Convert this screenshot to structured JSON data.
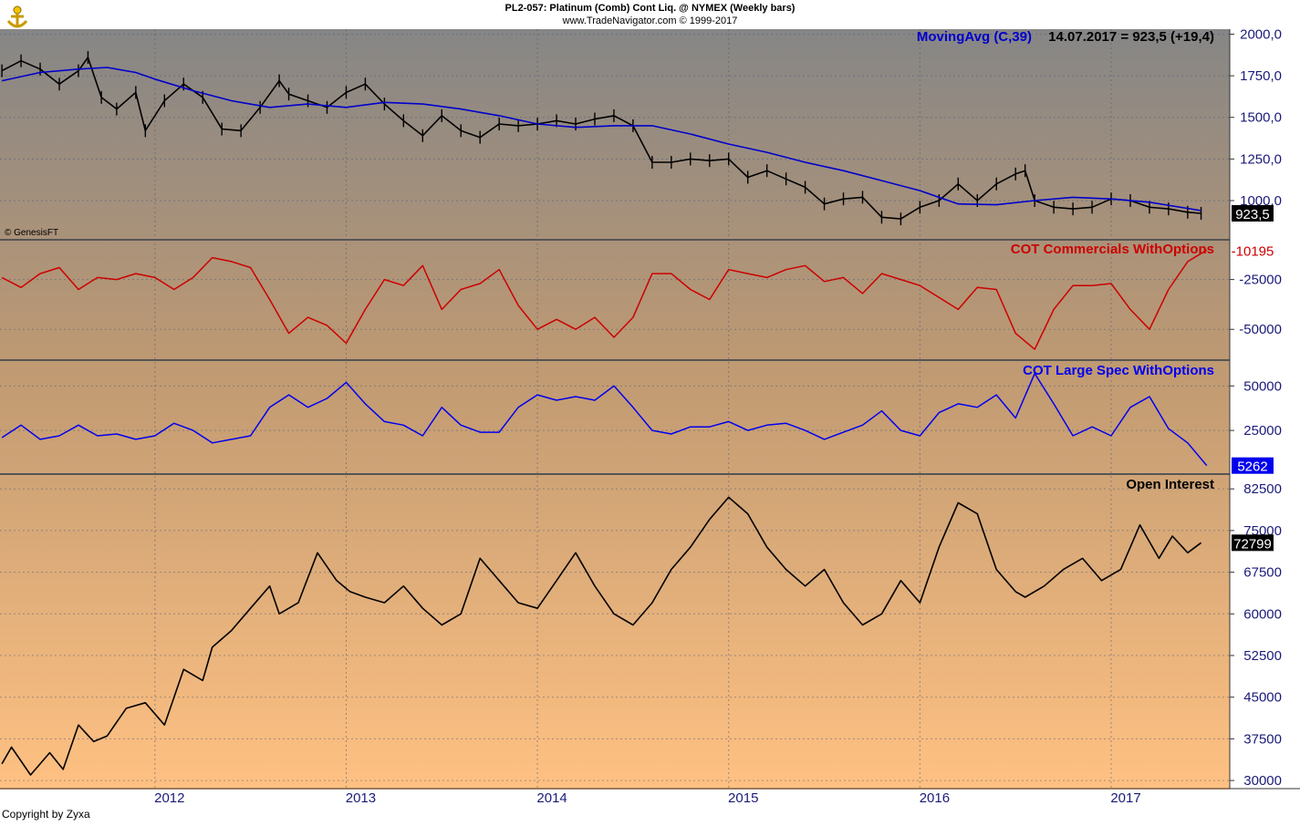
{
  "header": {
    "title": "PL2-057:  Platinum (Comb) Cont Liq. @ NYMEX  (Weekly bars)",
    "subtitle": "www.TradeNavigator.com © 1999-2017"
  },
  "footer": {
    "copyright": "Copyright by Zyxa",
    "source": "© GenesisFT"
  },
  "colors": {
    "price": "#000000",
    "moving_avg": "#0000cc",
    "commercials": "#cc0000",
    "large_spec": "#0000ee",
    "open_interest": "#000000",
    "bg_top": "#858585",
    "bg_bottom": "#ffc080"
  },
  "chart_data": [
    {
      "type": "line",
      "panel": "price",
      "legend": "MovingAvg (C,39)",
      "readout": "14.07.2017 = 923,5 (+19,4)",
      "last_value_label": "923,5",
      "y_ticks": [
        "2000,0",
        "1750,0",
        "1500,0",
        "1250,0",
        "1000,0"
      ],
      "y_tick_values": [
        2000,
        1750,
        1500,
        1250,
        1000
      ],
      "ylim": [
        770,
        2030
      ],
      "x_ticks": [
        "2012",
        "2013",
        "2014",
        "2015",
        "2016",
        "2017"
      ],
      "x_tick_values": [
        2012,
        2013,
        2014,
        2015,
        2016,
        2017
      ],
      "xlim": [
        2011.19,
        2017.62
      ],
      "series": [
        {
          "role": "price",
          "x": [
            2011.2,
            2011.3,
            2011.4,
            2011.5,
            2011.6,
            2011.65,
            2011.72,
            2011.8,
            2011.9,
            2011.95,
            2012.05,
            2012.15,
            2012.25,
            2012.35,
            2012.45,
            2012.55,
            2012.65,
            2012.7,
            2012.8,
            2012.9,
            2013.0,
            2013.1,
            2013.2,
            2013.3,
            2013.4,
            2013.5,
            2013.6,
            2013.7,
            2013.8,
            2013.9,
            2014.0,
            2014.1,
            2014.2,
            2014.3,
            2014.4,
            2014.5,
            2014.6,
            2014.7,
            2014.8,
            2014.9,
            2015.0,
            2015.1,
            2015.2,
            2015.3,
            2015.4,
            2015.5,
            2015.6,
            2015.7,
            2015.8,
            2015.9,
            2016.0,
            2016.1,
            2016.2,
            2016.3,
            2016.4,
            2016.5,
            2016.55,
            2016.6,
            2016.7,
            2016.8,
            2016.9,
            2017.0,
            2017.1,
            2017.2,
            2017.3,
            2017.4,
            2017.47
          ],
          "values": [
            1780,
            1840,
            1790,
            1700,
            1780,
            1860,
            1620,
            1550,
            1650,
            1420,
            1600,
            1700,
            1620,
            1430,
            1420,
            1560,
            1720,
            1640,
            1600,
            1560,
            1650,
            1700,
            1580,
            1480,
            1390,
            1510,
            1420,
            1380,
            1460,
            1450,
            1460,
            1480,
            1460,
            1490,
            1510,
            1450,
            1230,
            1230,
            1250,
            1240,
            1250,
            1140,
            1180,
            1130,
            1080,
            980,
            1010,
            1020,
            900,
            890,
            960,
            1000,
            1100,
            1000,
            1100,
            1160,
            1180,
            1000,
            960,
            950,
            960,
            1010,
            1000,
            960,
            950,
            930,
            923.5
          ]
        },
        {
          "role": "moving_avg",
          "name": "MovingAvg (C,39)",
          "x": [
            2011.2,
            2011.4,
            2011.6,
            2011.75,
            2011.9,
            2012.0,
            2012.2,
            2012.4,
            2012.6,
            2012.8,
            2013.0,
            2013.2,
            2013.4,
            2013.6,
            2013.8,
            2014.0,
            2014.2,
            2014.4,
            2014.6,
            2014.8,
            2015.0,
            2015.2,
            2015.4,
            2015.6,
            2015.8,
            2016.0,
            2016.2,
            2016.4,
            2016.6,
            2016.8,
            2017.0,
            2017.2,
            2017.47
          ],
          "values": [
            1720,
            1770,
            1790,
            1800,
            1770,
            1730,
            1660,
            1600,
            1560,
            1580,
            1560,
            1590,
            1580,
            1550,
            1510,
            1460,
            1440,
            1450,
            1450,
            1400,
            1340,
            1290,
            1230,
            1180,
            1120,
            1060,
            980,
            975,
            1000,
            1020,
            1010,
            990,
            940
          ]
        }
      ]
    },
    {
      "type": "line",
      "panel": "commercials",
      "legend": "COT Commercials WithOptions",
      "last_value_label": "-10195",
      "y_ticks": [
        "-25000",
        "-50000"
      ],
      "y_tick_values": [
        -25000,
        -50000
      ],
      "ylim": [
        -65000,
        -5500
      ],
      "xlim": [
        2011.19,
        2017.62
      ],
      "series": [
        {
          "name": "COT Commercials WithOptions",
          "x": [
            2011.2,
            2011.3,
            2011.4,
            2011.5,
            2011.6,
            2011.7,
            2011.8,
            2011.9,
            2012.0,
            2012.1,
            2012.2,
            2012.3,
            2012.4,
            2012.5,
            2012.6,
            2012.7,
            2012.8,
            2012.9,
            2013.0,
            2013.1,
            2013.2,
            2013.3,
            2013.4,
            2013.5,
            2013.6,
            2013.7,
            2013.8,
            2013.9,
            2014.0,
            2014.1,
            2014.2,
            2014.3,
            2014.4,
            2014.5,
            2014.6,
            2014.7,
            2014.8,
            2014.9,
            2015.0,
            2015.1,
            2015.2,
            2015.3,
            2015.4,
            2015.5,
            2015.6,
            2015.7,
            2015.8,
            2015.9,
            2016.0,
            2016.1,
            2016.2,
            2016.3,
            2016.4,
            2016.5,
            2016.6,
            2016.7,
            2016.8,
            2016.9,
            2017.0,
            2017.1,
            2017.2,
            2017.3,
            2017.4,
            2017.5
          ],
          "values": [
            -24000,
            -29000,
            -22000,
            -19000,
            -30000,
            -24000,
            -25000,
            -22000,
            -24000,
            -30000,
            -24000,
            -14000,
            -16000,
            -19000,
            -35000,
            -52000,
            -44000,
            -48000,
            -57000,
            -40000,
            -25000,
            -28000,
            -18000,
            -40000,
            -30000,
            -27000,
            -20000,
            -38000,
            -50000,
            -45000,
            -50000,
            -44000,
            -54000,
            -44000,
            -22000,
            -22000,
            -30000,
            -35000,
            -20000,
            -22000,
            -24000,
            -20000,
            -18000,
            -26000,
            -24000,
            -32000,
            -22000,
            -25000,
            -28000,
            -34000,
            -40000,
            -29000,
            -30000,
            -52000,
            -60000,
            -40000,
            -28000,
            -28000,
            -27000,
            -40000,
            -50000,
            -30000,
            -16000,
            -10195
          ]
        }
      ]
    },
    {
      "type": "line",
      "panel": "large_spec",
      "legend": "COT Large Spec WithOptions",
      "last_value_label": "5262",
      "y_ticks": [
        "50000",
        "25000"
      ],
      "y_tick_values": [
        50000,
        25000
      ],
      "ylim": [
        1000,
        64000
      ],
      "xlim": [
        2011.19,
        2017.62
      ],
      "series": [
        {
          "name": "COT Large Spec WithOptions",
          "x": [
            2011.2,
            2011.3,
            2011.4,
            2011.5,
            2011.6,
            2011.7,
            2011.8,
            2011.9,
            2012.0,
            2012.1,
            2012.2,
            2012.3,
            2012.4,
            2012.5,
            2012.6,
            2012.7,
            2012.8,
            2012.9,
            2013.0,
            2013.1,
            2013.2,
            2013.3,
            2013.4,
            2013.5,
            2013.6,
            2013.7,
            2013.8,
            2013.9,
            2014.0,
            2014.1,
            2014.2,
            2014.3,
            2014.4,
            2014.5,
            2014.6,
            2014.7,
            2014.8,
            2014.9,
            2015.0,
            2015.1,
            2015.2,
            2015.3,
            2015.4,
            2015.5,
            2015.6,
            2015.7,
            2015.8,
            2015.9,
            2016.0,
            2016.1,
            2016.2,
            2016.3,
            2016.4,
            2016.5,
            2016.6,
            2016.7,
            2016.8,
            2016.9,
            2017.0,
            2017.1,
            2017.2,
            2017.3,
            2017.4,
            2017.5
          ],
          "values": [
            21000,
            28000,
            20000,
            22000,
            28000,
            22000,
            23000,
            20000,
            22000,
            29000,
            25000,
            18000,
            20000,
            22000,
            38000,
            45000,
            38000,
            43000,
            52000,
            40000,
            30000,
            28000,
            22000,
            38000,
            28000,
            24000,
            24000,
            38000,
            45000,
            42000,
            44000,
            42000,
            50000,
            38000,
            25000,
            23000,
            27000,
            27000,
            30000,
            25000,
            28000,
            29000,
            25000,
            20000,
            24000,
            28000,
            36000,
            25000,
            22000,
            35000,
            40000,
            38000,
            45000,
            32000,
            57000,
            40000,
            22000,
            27000,
            22000,
            38000,
            44000,
            26000,
            18000,
            5262
          ]
        }
      ]
    },
    {
      "type": "line",
      "panel": "open_interest",
      "legend": "Open Interest",
      "last_value_label": "72799",
      "y_ticks": [
        "82500",
        "75000",
        "67500",
        "60000",
        "52500",
        "45000",
        "37500",
        "30000"
      ],
      "y_tick_values": [
        82500,
        75000,
        67500,
        60000,
        52500,
        45000,
        37500,
        30000
      ],
      "ylim": [
        28700,
        85000
      ],
      "xlim": [
        2011.19,
        2017.62
      ],
      "series": [
        {
          "name": "Open Interest",
          "x": [
            2011.2,
            2011.25,
            2011.35,
            2011.45,
            2011.52,
            2011.6,
            2011.68,
            2011.75,
            2011.85,
            2011.95,
            2012.05,
            2012.15,
            2012.25,
            2012.3,
            2012.4,
            2012.5,
            2012.6,
            2012.65,
            2012.75,
            2012.85,
            2012.95,
            2013.02,
            2013.1,
            2013.2,
            2013.3,
            2013.4,
            2013.5,
            2013.6,
            2013.7,
            2013.8,
            2013.9,
            2014.0,
            2014.1,
            2014.2,
            2014.3,
            2014.4,
            2014.5,
            2014.6,
            2014.7,
            2014.8,
            2014.9,
            2015.0,
            2015.1,
            2015.2,
            2015.3,
            2015.4,
            2015.5,
            2015.6,
            2015.7,
            2015.8,
            2015.9,
            2016.0,
            2016.1,
            2016.2,
            2016.3,
            2016.4,
            2016.5,
            2016.55,
            2016.65,
            2016.75,
            2016.85,
            2016.95,
            2017.05,
            2017.15,
            2017.25,
            2017.32,
            2017.4,
            2017.47
          ],
          "values": [
            33000,
            36000,
            31000,
            35000,
            32000,
            40000,
            37000,
            38000,
            43000,
            44000,
            40000,
            50000,
            48000,
            54000,
            57000,
            61000,
            65000,
            60000,
            62000,
            71000,
            66000,
            64000,
            63000,
            62000,
            65000,
            61000,
            58000,
            60000,
            70000,
            66000,
            62000,
            61000,
            66000,
            71000,
            65000,
            60000,
            58000,
            62000,
            68000,
            72000,
            77000,
            81000,
            78000,
            72000,
            68000,
            65000,
            68000,
            62000,
            58000,
            60000,
            66000,
            62000,
            72000,
            80000,
            78000,
            68000,
            64000,
            63000,
            65000,
            68000,
            70000,
            66000,
            68000,
            76000,
            70000,
            74000,
            71000,
            72799
          ]
        }
      ]
    }
  ]
}
